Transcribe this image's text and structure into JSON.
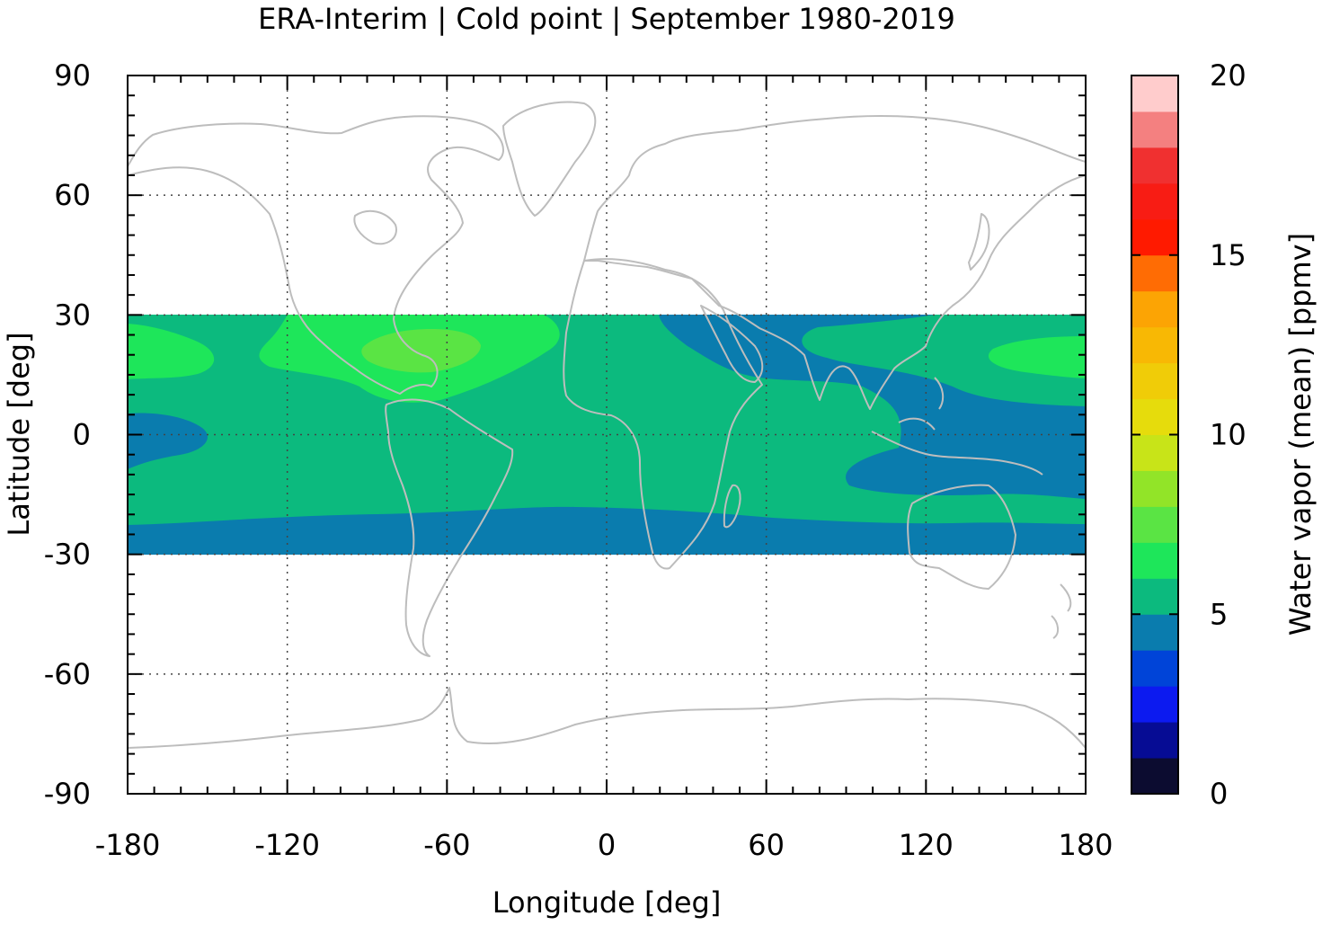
{
  "chart_data": {
    "type": "heatmap",
    "title": "ERA-Interim | Cold point | September 1980-2019",
    "xlabel": "Longitude [deg]",
    "ylabel": "Latitude [deg]",
    "colorbar_label": "Water vapor (mean) [ppmv]",
    "xlim": [
      -180,
      180
    ],
    "ylim": [
      -90,
      90
    ],
    "xticks": [
      -180,
      -120,
      -60,
      0,
      60,
      120,
      180
    ],
    "yticks": [
      -90,
      -60,
      -30,
      0,
      30,
      60,
      90
    ],
    "x_tick_labels": [
      "-180",
      "-120",
      "-60",
      "0",
      "60",
      "120",
      "180"
    ],
    "y_tick_labels": [
      "-90",
      "-60",
      "-30",
      "0",
      "30",
      "60",
      "90"
    ],
    "grid": true,
    "data_lat_range": [
      -30,
      30
    ],
    "colorbar": {
      "range": [
        0,
        20
      ],
      "ticks": [
        0,
        5,
        10,
        15,
        20
      ],
      "tick_labels": [
        "0",
        "5",
        "10",
        "15",
        "20"
      ],
      "colors": [
        "#0c0c30",
        "#060c94",
        "#0c1af0",
        "#0044d8",
        "#0a7cae",
        "#0cba7e",
        "#1ee65a",
        "#5ae444",
        "#92e428",
        "#c8e418",
        "#e6dc0c",
        "#f0cc08",
        "#f8b804",
        "#fca404",
        "#ff6c04",
        "#ff1a00",
        "#f81c14",
        "#f03030",
        "#f48080",
        "#ffcccc"
      ]
    },
    "field": {
      "levels": [
        {
          "value_range": [
            4,
            5
          ],
          "color": "#0a7cae",
          "regions": [
            "southern subtropics band (-30 to about -22 lat)",
            "western Pacific / Indian Ocean / South Asia",
            "central Pacific near equator"
          ]
        },
        {
          "value_range": [
            5,
            6
          ],
          "color": "#0cba7e",
          "regions": [
            "tropical background"
          ]
        },
        {
          "value_range": [
            6,
            7
          ],
          "color": "#1ee65a",
          "regions": [
            "Central America / Caribbean",
            "North Pacific subtropics"
          ]
        },
        {
          "value_range": [
            7,
            8
          ],
          "color": "#5ae444",
          "regions": [
            "Caribbean core"
          ]
        }
      ]
    }
  },
  "coastline_color": "#bdbdbd",
  "grid_color": "#444444"
}
